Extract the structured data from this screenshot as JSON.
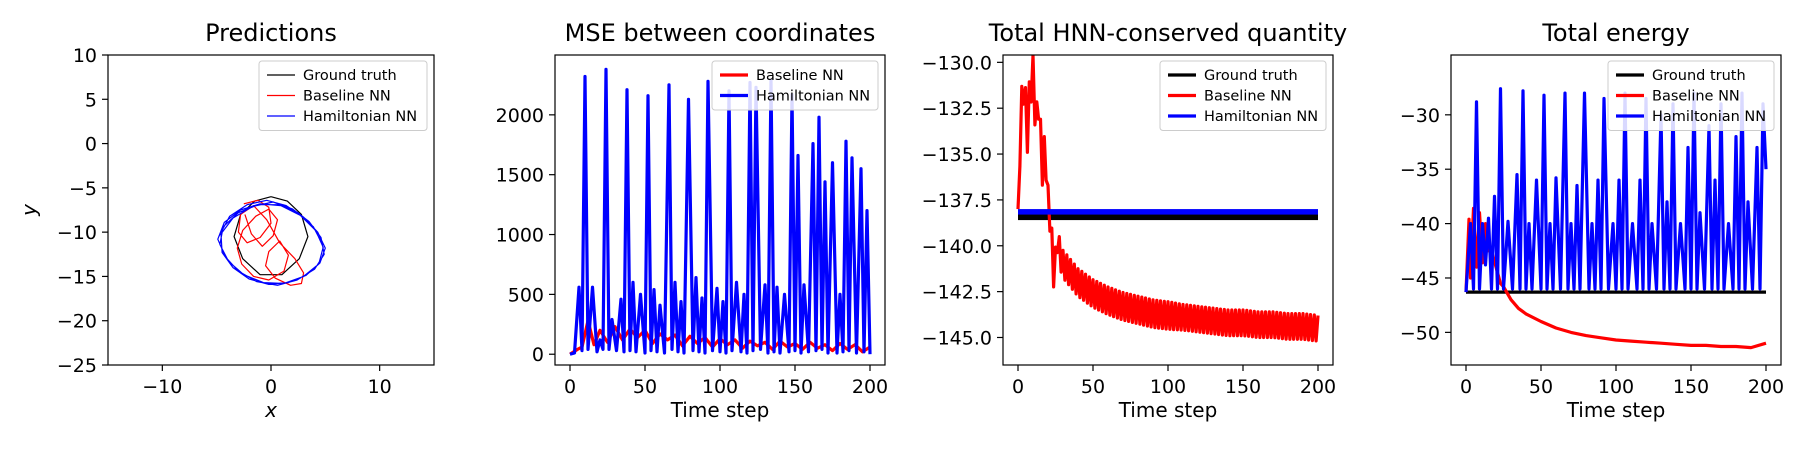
{
  "colors": {
    "ground_truth": "#000000",
    "baseline": "#ff0000",
    "hamiltonian": "#0000ff"
  },
  "chart_data": [
    {
      "type": "line",
      "title": "Predictions",
      "xlabel": "x",
      "ylabel": "y",
      "xlim": [
        -15,
        15
      ],
      "ylim": [
        -25,
        10
      ],
      "xticks": [
        -10,
        0,
        10
      ],
      "yticks": [
        10,
        5,
        0,
        -5,
        -10,
        -15,
        -20,
        -25
      ],
      "legend": "top-right",
      "series": [
        {
          "name": "Ground truth",
          "color": "#000000",
          "x": [
            0.0,
            1.5,
            2.8,
            3.4,
            2.6,
            1.0,
            -1.0,
            -2.6,
            -3.4,
            -2.8,
            -1.5,
            0.0
          ],
          "y": [
            -6.0,
            -6.5,
            -8.0,
            -10.5,
            -13.0,
            -14.8,
            -14.8,
            -13.0,
            -10.5,
            -8.0,
            -6.5,
            -6.0
          ]
        },
        {
          "name": "Baseline NN",
          "color": "#ff0000",
          "x": [
            -2.5,
            -1.2,
            -0.2,
            0.0,
            -1.0,
            -2.2,
            -3.0,
            -2.8,
            -1.6,
            -0.4,
            0.8,
            2.2,
            3.0,
            2.8,
            1.8,
            0.4,
            -0.5,
            -0.2,
            0.8,
            1.6,
            1.2,
            -0.2,
            -1.6,
            -2.7,
            -3.1,
            -2.6,
            -1.4,
            -0.2,
            0.6,
            0.2,
            -0.8,
            -1.8,
            -2.4
          ],
          "y": [
            -6.8,
            -6.4,
            -7.2,
            -9.0,
            -10.6,
            -11.2,
            -10.0,
            -8.0,
            -7.0,
            -8.6,
            -11.2,
            -13.0,
            -14.6,
            -15.8,
            -16.0,
            -15.2,
            -13.8,
            -12.2,
            -11.0,
            -12.6,
            -14.4,
            -15.4,
            -15.0,
            -13.6,
            -11.8,
            -9.8,
            -8.2,
            -7.4,
            -8.6,
            -10.4,
            -11.6,
            -10.2,
            -8.0
          ]
        },
        {
          "name": "Hamiltonian NN",
          "color": "#0000ff",
          "x": [
            -4.8,
            -3.8,
            -2.2,
            -0.4,
            1.4,
            3.0,
            4.3,
            5.0,
            4.5,
            3.2,
            1.6,
            -0.2,
            -2.0,
            -3.5,
            -4.5,
            -4.6,
            -3.5,
            -1.7,
            0.2,
            2.0,
            3.5,
            4.6,
            4.9,
            4.0,
            2.4,
            0.6,
            -1.3,
            -3.0,
            -4.2,
            -4.9,
            -4.3,
            -2.8,
            -1.0,
            0.9,
            2.7,
            4.1,
            4.8,
            4.4,
            3.0,
            1.2,
            -0.7,
            -2.5,
            -3.9,
            -4.7,
            -4.4,
            -3.0,
            -1.2,
            0.7,
            2.5,
            3.9,
            4.7
          ],
          "y": [
            -10.5,
            -8.2,
            -6.9,
            -6.4,
            -7.0,
            -8.3,
            -10.0,
            -11.8,
            -13.5,
            -14.9,
            -15.7,
            -15.9,
            -15.3,
            -14.0,
            -12.3,
            -10.2,
            -8.4,
            -7.1,
            -6.6,
            -7.4,
            -8.8,
            -10.6,
            -12.5,
            -14.2,
            -15.4,
            -16.0,
            -15.6,
            -14.4,
            -12.8,
            -10.8,
            -8.9,
            -7.5,
            -6.8,
            -7.0,
            -8.1,
            -9.8,
            -11.7,
            -13.6,
            -15.0,
            -15.8,
            -15.7,
            -14.8,
            -13.3,
            -11.4,
            -9.4,
            -7.8,
            -6.9,
            -6.9,
            -7.8,
            -9.4,
            -11.3
          ]
        }
      ]
    },
    {
      "type": "line",
      "title": "MSE between coordinates",
      "xlabel": "Time step",
      "ylabel": "",
      "xlim": [
        -10,
        210
      ],
      "ylim": [
        -90,
        2500
      ],
      "xticks": [
        0,
        50,
        100,
        150,
        200
      ],
      "yticks": [
        0,
        500,
        1000,
        1500,
        2000
      ],
      "legend": "top-right",
      "series": [
        {
          "name": "Baseline NN",
          "color": "#ff0000",
          "x": [
            0,
            5,
            8,
            12,
            16,
            20,
            25,
            30,
            35,
            40,
            45,
            50,
            55,
            60,
            65,
            70,
            75,
            80,
            85,
            90,
            95,
            100,
            105,
            110,
            115,
            120,
            125,
            130,
            135,
            140,
            145,
            150,
            155,
            160,
            165,
            170,
            175,
            180,
            185,
            190,
            195,
            200
          ],
          "y": [
            0,
            40,
            60,
            280,
            80,
            200,
            100,
            230,
            120,
            210,
            140,
            200,
            90,
            170,
            120,
            160,
            70,
            150,
            90,
            140,
            60,
            130,
            80,
            120,
            50,
            110,
            70,
            100,
            40,
            110,
            60,
            90,
            40,
            100,
            50,
            80,
            30,
            90,
            40,
            80,
            20,
            60
          ]
        },
        {
          "name": "Hamiltonian NN",
          "color": "#0000ff",
          "x": [
            0,
            3,
            6,
            8,
            10,
            12,
            15,
            18,
            20,
            22,
            24,
            26,
            28,
            31,
            34,
            36,
            38,
            40,
            42,
            44,
            47,
            50,
            52,
            54,
            56,
            58,
            60,
            63,
            66,
            68,
            70,
            72,
            74,
            76,
            79,
            82,
            84,
            86,
            88,
            90,
            92,
            95,
            98,
            100,
            102,
            104,
            106,
            108,
            111,
            114,
            116,
            118,
            120,
            122,
            124,
            127,
            130,
            132,
            134,
            136,
            138,
            140,
            143,
            146,
            148,
            150,
            152,
            154,
            156,
            159,
            162,
            164,
            166,
            168,
            170,
            172,
            175,
            178,
            180,
            182,
            184,
            186,
            188,
            191,
            194,
            196,
            198,
            200
          ],
          "y": [
            0,
            10,
            560,
            30,
            2320,
            40,
            560,
            20,
            120,
            40,
            2380,
            40,
            290,
            30,
            460,
            20,
            2210,
            30,
            600,
            20,
            500,
            10,
            2160,
            30,
            540,
            20,
            410,
            10,
            2250,
            40,
            600,
            20,
            440,
            10,
            2130,
            30,
            640,
            20,
            470,
            10,
            2280,
            30,
            550,
            20,
            440,
            10,
            2200,
            30,
            600,
            20,
            500,
            10,
            2270,
            30,
            2230,
            40,
            580,
            10,
            2290,
            20,
            560,
            10,
            500,
            20,
            2170,
            30,
            1660,
            10,
            580,
            20,
            1760,
            30,
            1980,
            40,
            1440,
            10,
            1600,
            10,
            500,
            20,
            1780,
            30,
            1640,
            10,
            1550,
            20,
            1200,
            0
          ]
        }
      ]
    },
    {
      "type": "line",
      "title": "Total HNN-conserved quantity",
      "xlabel": "Time step",
      "ylabel": "",
      "xlim": [
        -10,
        210
      ],
      "ylim": [
        -146.5,
        -129.6
      ],
      "xticks": [
        0,
        50,
        100,
        150,
        200
      ],
      "yticks": [
        -130.0,
        -132.5,
        -135.0,
        -137.5,
        -140.0,
        -142.5,
        -145.0
      ],
      "legend": "top-right",
      "series": [
        {
          "name": "Ground truth",
          "color": "#000000",
          "band": [
            -138.6,
            -138.1
          ],
          "x": [
            0,
            200
          ],
          "y": [
            -138.3,
            -138.3
          ]
        },
        {
          "name": "Baseline NN",
          "color": "#ff0000",
          "x": [
            0,
            2,
            4,
            6,
            8,
            10,
            12,
            14,
            16,
            18,
            20,
            22,
            24,
            26,
            28,
            30,
            35,
            40,
            45,
            50,
            60,
            70,
            80,
            90,
            100,
            110,
            120,
            130,
            140,
            150,
            160,
            170,
            180,
            190,
            200
          ],
          "y": [
            -138.0,
            -133.0,
            -131.0,
            -134.0,
            -131.5,
            -130.6,
            -133.5,
            -132.0,
            -136.0,
            -134.5,
            -137.5,
            -139.0,
            -142.0,
            -139.5,
            -140.5,
            -141.0,
            -141.5,
            -142.0,
            -142.3,
            -142.6,
            -143.0,
            -143.3,
            -143.5,
            -143.7,
            -143.8,
            -143.9,
            -144.0,
            -144.1,
            -144.2,
            -144.2,
            -144.3,
            -144.3,
            -144.4,
            -144.4,
            -144.5
          ],
          "osc_amp": [
            0,
            2.5,
            2.0,
            2.5,
            2.0,
            2.0,
            2.0,
            1.8,
            1.8,
            1.6,
            1.6,
            1.5,
            1.2,
            1.5,
            1.5,
            1.5,
            1.5,
            1.5,
            1.5,
            1.5,
            1.5,
            1.5,
            1.5,
            1.5,
            1.5,
            1.4,
            1.4,
            1.4,
            1.4,
            1.4,
            1.4,
            1.4,
            1.4,
            1.4,
            1.4
          ]
        },
        {
          "name": "Hamiltonian NN",
          "color": "#0000ff",
          "band": [
            -138.3,
            -138.0
          ],
          "x": [
            0,
            200
          ],
          "y": [
            -138.15,
            -138.15
          ]
        }
      ]
    },
    {
      "type": "line",
      "title": "Total energy",
      "xlabel": "Time step",
      "ylabel": "",
      "xlim": [
        -10,
        210
      ],
      "ylim": [
        -53,
        -24.5
      ],
      "xticks": [
        0,
        50,
        100,
        150,
        200
      ],
      "yticks": [
        -30,
        -35,
        -40,
        -45,
        -50
      ],
      "legend": "top-right",
      "series": [
        {
          "name": "Ground truth",
          "color": "#000000",
          "x": [
            0,
            200
          ],
          "y": [
            -46.3,
            -46.3
          ]
        },
        {
          "name": "Baseline NN",
          "color": "#ff0000",
          "x": [
            0,
            2,
            3,
            5,
            7,
            9,
            11,
            13,
            15,
            17,
            20,
            23,
            25,
            30,
            35,
            40,
            50,
            60,
            70,
            80,
            90,
            100,
            110,
            120,
            130,
            140,
            150,
            160,
            170,
            180,
            190,
            200
          ],
          "y": [
            -46.3,
            -39.6,
            -45.0,
            -38.6,
            -44.0,
            -39.0,
            -43.6,
            -40.0,
            -42.5,
            -42.5,
            -44.0,
            -45.5,
            -45.8,
            -47.0,
            -47.8,
            -48.3,
            -49.0,
            -49.6,
            -50.0,
            -50.3,
            -50.5,
            -50.7,
            -50.8,
            -50.9,
            -51.0,
            -51.1,
            -51.2,
            -51.2,
            -51.3,
            -51.3,
            -51.4,
            -51.0
          ]
        },
        {
          "name": "Hamiltonian NN",
          "color": "#0000ff",
          "x": [
            0,
            3,
            5,
            7,
            9,
            11,
            13,
            15,
            17,
            19,
            21,
            23,
            25,
            28,
            31,
            34,
            36,
            38,
            40,
            42,
            44,
            47,
            50,
            52,
            54,
            56,
            58,
            60,
            63,
            66,
            68,
            70,
            72,
            74,
            76,
            79,
            82,
            84,
            86,
            88,
            90,
            92,
            95,
            98,
            100,
            102,
            104,
            106,
            108,
            111,
            114,
            116,
            118,
            120,
            122,
            124,
            127,
            130,
            132,
            134,
            136,
            138,
            140,
            143,
            146,
            148,
            150,
            152,
            154,
            156,
            159,
            162,
            164,
            166,
            168,
            170,
            172,
            175,
            178,
            180,
            182,
            184,
            186,
            188,
            191,
            194,
            196,
            198,
            200
          ],
          "y": [
            -46.3,
            -40.0,
            -46.0,
            -28.8,
            -46.0,
            -40.0,
            -43.8,
            -39.5,
            -46.0,
            -37.5,
            -46.0,
            -27.6,
            -46.0,
            -39.8,
            -46.0,
            -35.5,
            -46.0,
            -27.8,
            -46.0,
            -40.0,
            -46.0,
            -36.0,
            -46.0,
            -28.2,
            -46.0,
            -40.0,
            -46.0,
            -35.8,
            -46.0,
            -28.0,
            -46.0,
            -40.0,
            -46.0,
            -36.5,
            -46.0,
            -28.0,
            -46.0,
            -40.0,
            -46.0,
            -36.0,
            -46.0,
            -28.5,
            -46.0,
            -40.0,
            -46.0,
            -36.0,
            -46.0,
            -28.0,
            -46.0,
            -40.0,
            -46.0,
            -36.0,
            -46.0,
            -28.5,
            -46.0,
            -40.0,
            -46.0,
            -30.0,
            -46.0,
            -38.0,
            -46.0,
            -29.0,
            -46.0,
            -40.0,
            -46.0,
            -33.0,
            -46.0,
            -28.0,
            -46.0,
            -39.0,
            -46.0,
            -31.0,
            -46.0,
            -36.0,
            -46.0,
            -29.0,
            -46.0,
            -40.0,
            -46.0,
            -32.0,
            -46.0,
            -28.0,
            -46.0,
            -38.0,
            -46.0,
            -33.0,
            -46.0,
            -29.0,
            -35.0
          ]
        }
      ]
    }
  ]
}
